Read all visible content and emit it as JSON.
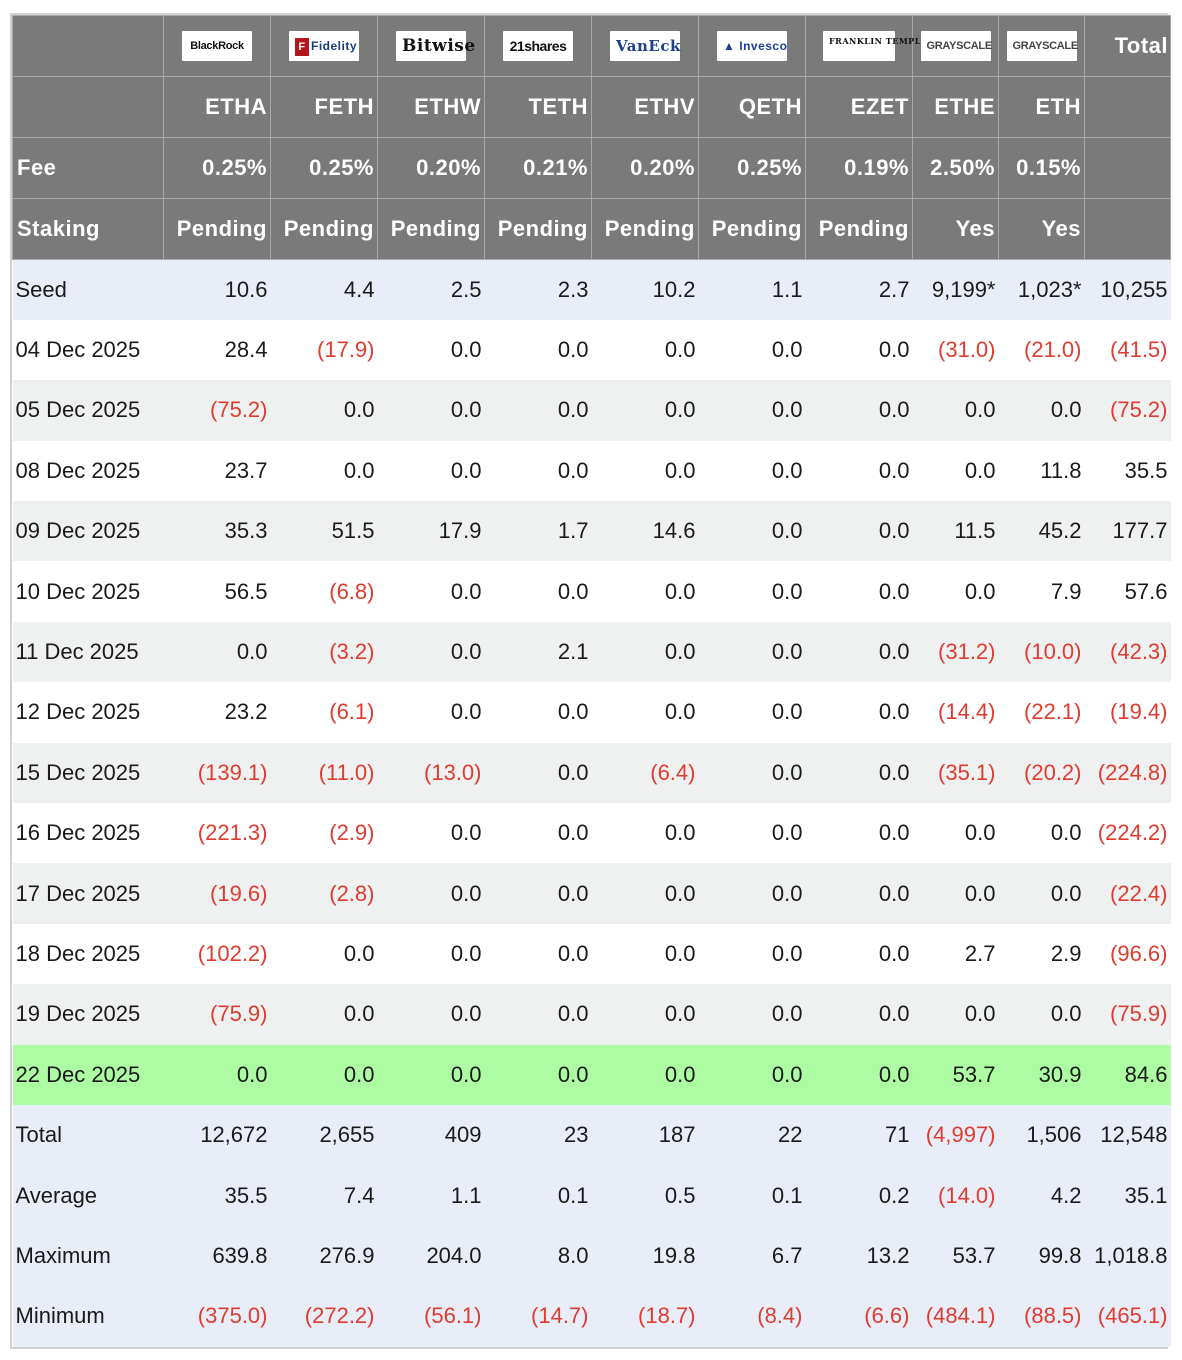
{
  "header": {
    "logos": [
      "BlackRock",
      "Fidelity",
      "Bitwise",
      "21shares",
      "VanEck",
      "Invesco",
      "FRANKLIN TEMPLETON",
      "GRAYSCALE",
      "GRAYSCALE"
    ],
    "total_label": "Total",
    "tickers": [
      "ETHA",
      "FETH",
      "ETHW",
      "TETH",
      "ETHV",
      "QETH",
      "EZET",
      "ETHE",
      "ETH"
    ],
    "fee_label": "Fee",
    "fees": [
      "0.25%",
      "0.25%",
      "0.20%",
      "0.21%",
      "0.20%",
      "0.25%",
      "0.19%",
      "2.50%",
      "0.15%"
    ],
    "staking_label": "Staking",
    "staking": [
      "Pending",
      "Pending",
      "Pending",
      "Pending",
      "Pending",
      "Pending",
      "Pending",
      "Yes",
      "Yes"
    ]
  },
  "rows": [
    {
      "label": "Seed",
      "values": [
        "10.6",
        "4.4",
        "2.5",
        "2.3",
        "10.2",
        "1.1",
        "2.7",
        "9,199*",
        "1,023*",
        "10,255"
      ]
    },
    {
      "label": "04 Dec 2025",
      "values": [
        "28.4",
        "(17.9)",
        "0.0",
        "0.0",
        "0.0",
        "0.0",
        "0.0",
        "(31.0)",
        "(21.0)",
        "(41.5)"
      ]
    },
    {
      "label": "05 Dec 2025",
      "values": [
        "(75.2)",
        "0.0",
        "0.0",
        "0.0",
        "0.0",
        "0.0",
        "0.0",
        "0.0",
        "0.0",
        "(75.2)"
      ]
    },
    {
      "label": "08 Dec 2025",
      "values": [
        "23.7",
        "0.0",
        "0.0",
        "0.0",
        "0.0",
        "0.0",
        "0.0",
        "0.0",
        "11.8",
        "35.5"
      ]
    },
    {
      "label": "09 Dec 2025",
      "values": [
        "35.3",
        "51.5",
        "17.9",
        "1.7",
        "14.6",
        "0.0",
        "0.0",
        "11.5",
        "45.2",
        "177.7"
      ]
    },
    {
      "label": "10 Dec 2025",
      "values": [
        "56.5",
        "(6.8)",
        "0.0",
        "0.0",
        "0.0",
        "0.0",
        "0.0",
        "0.0",
        "7.9",
        "57.6"
      ]
    },
    {
      "label": "11 Dec 2025",
      "values": [
        "0.0",
        "(3.2)",
        "0.0",
        "2.1",
        "0.0",
        "0.0",
        "0.0",
        "(31.2)",
        "(10.0)",
        "(42.3)"
      ]
    },
    {
      "label": "12 Dec 2025",
      "values": [
        "23.2",
        "(6.1)",
        "0.0",
        "0.0",
        "0.0",
        "0.0",
        "0.0",
        "(14.4)",
        "(22.1)",
        "(19.4)"
      ]
    },
    {
      "label": "15 Dec 2025",
      "values": [
        "(139.1)",
        "(11.0)",
        "(13.0)",
        "0.0",
        "(6.4)",
        "0.0",
        "0.0",
        "(35.1)",
        "(20.2)",
        "(224.8)"
      ]
    },
    {
      "label": "16 Dec 2025",
      "values": [
        "(221.3)",
        "(2.9)",
        "0.0",
        "0.0",
        "0.0",
        "0.0",
        "0.0",
        "0.0",
        "0.0",
        "(224.2)"
      ]
    },
    {
      "label": "17 Dec 2025",
      "values": [
        "(19.6)",
        "(2.8)",
        "0.0",
        "0.0",
        "0.0",
        "0.0",
        "0.0",
        "0.0",
        "0.0",
        "(22.4)"
      ]
    },
    {
      "label": "18 Dec 2025",
      "values": [
        "(102.2)",
        "0.0",
        "0.0",
        "0.0",
        "0.0",
        "0.0",
        "0.0",
        "2.7",
        "2.9",
        "(96.6)"
      ]
    },
    {
      "label": "19 Dec 2025",
      "values": [
        "(75.9)",
        "0.0",
        "0.0",
        "0.0",
        "0.0",
        "0.0",
        "0.0",
        "0.0",
        "0.0",
        "(75.9)"
      ]
    },
    {
      "label": "22 Dec 2025",
      "values": [
        "0.0",
        "0.0",
        "0.0",
        "0.0",
        "0.0",
        "0.0",
        "0.0",
        "53.7",
        "30.9",
        "84.6"
      ]
    },
    {
      "label": "Total",
      "values": [
        "12,672",
        "2,655",
        "409",
        "23",
        "187",
        "22",
        "71",
        "(4,997)",
        "1,506",
        "12,548"
      ]
    },
    {
      "label": "Average",
      "values": [
        "35.5",
        "7.4",
        "1.1",
        "0.1",
        "0.5",
        "0.1",
        "0.2",
        "(14.0)",
        "4.2",
        "35.1"
      ]
    },
    {
      "label": "Maximum",
      "values": [
        "639.8",
        "276.9",
        "204.0",
        "8.0",
        "19.8",
        "6.7",
        "13.2",
        "53.7",
        "99.8",
        "1,018.8"
      ]
    },
    {
      "label": "Minimum",
      "values": [
        "(375.0)",
        "(272.2)",
        "(56.1)",
        "(14.7)",
        "(18.7)",
        "(8.4)",
        "(6.6)",
        "(484.1)",
        "(88.5)",
        "(465.1)"
      ]
    }
  ],
  "colors": {
    "header_bg": "#7a7a7a",
    "negative": "#e03b2f",
    "highlight_row": "#adfca3",
    "seed_summary_bg": "#e8edf7",
    "stripe_bg": "#eff1f1"
  }
}
